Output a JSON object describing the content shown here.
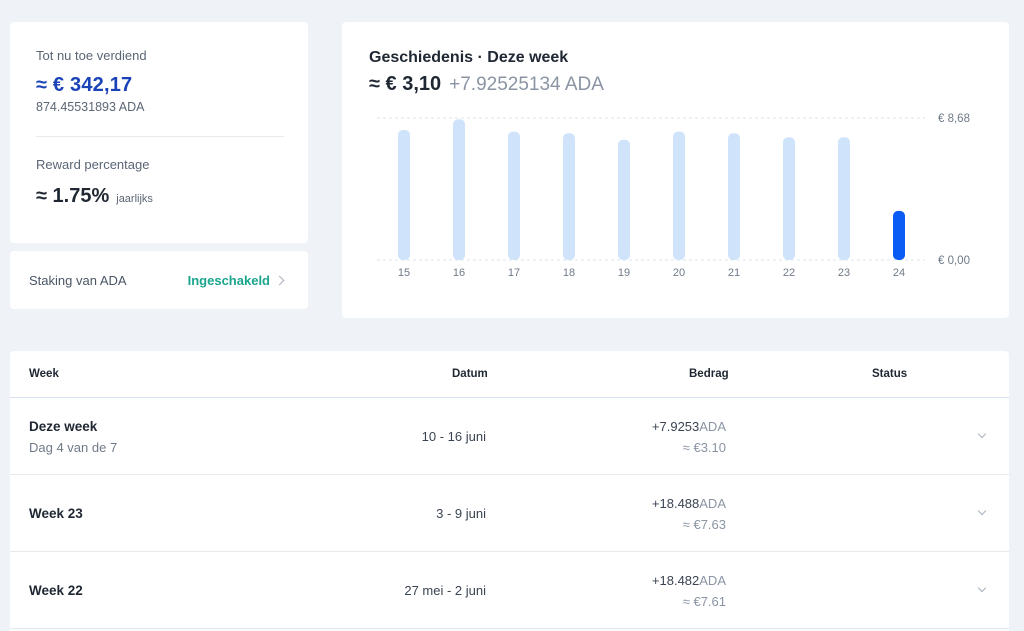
{
  "earnings": {
    "label": "Tot nu toe verdiend",
    "value_eur": "≈ € 342,17",
    "value_ada": "874.45531893 ADA",
    "reward_label": "Reward percentage",
    "reward_value": "≈ 1.75%",
    "reward_period": "jaarlijks"
  },
  "staking": {
    "label": "Staking van ADA",
    "status": "Ingeschakeld",
    "status_color": "#1aa58d"
  },
  "chart": {
    "title": "Geschiedenis · Deze week",
    "total_eur": "≈ € 3,10",
    "total_ada": "+7.92525134 ADA"
  },
  "chart_data": {
    "type": "bar",
    "categories": [
      "15",
      "16",
      "17",
      "18",
      "19",
      "20",
      "21",
      "22",
      "23",
      "24"
    ],
    "values": [
      7.95,
      8.6,
      7.85,
      7.75,
      7.35,
      7.85,
      7.75,
      7.5,
      7.5,
      3.0
    ],
    "highlight_index": 9,
    "ylim": [
      0,
      8.68
    ],
    "y_tick_labels": [
      "€ 8,68",
      "€ 0,00"
    ],
    "colors": {
      "bar": "#cfe3fb",
      "highlight": "#0a5cf5",
      "grid": "#dfe4ea"
    }
  },
  "table": {
    "headers": {
      "week": "Week",
      "date": "Datum",
      "amount": "Bedrag",
      "status": "Status"
    },
    "rows": [
      {
        "week": "Deze week",
        "sub": "Dag 4 van de 7",
        "date": "10 - 16 juni",
        "amount": "+7.9253",
        "unit": "ADA",
        "eur": "≈ €3.10",
        "status": ""
      },
      {
        "week": "Week 23",
        "sub": "",
        "date": "3 - 9 juni",
        "amount": "+18.488",
        "unit": "ADA",
        "eur": "≈ €7.63",
        "status": ""
      },
      {
        "week": "Week 22",
        "sub": "",
        "date": "27 mei - 2 juni",
        "amount": "+18.482",
        "unit": "ADA",
        "eur": "≈ €7.61",
        "status": ""
      }
    ]
  },
  "icons": {
    "staking_chevron": "chevron-right-icon",
    "row_chevron": "chevron-down-icon"
  }
}
